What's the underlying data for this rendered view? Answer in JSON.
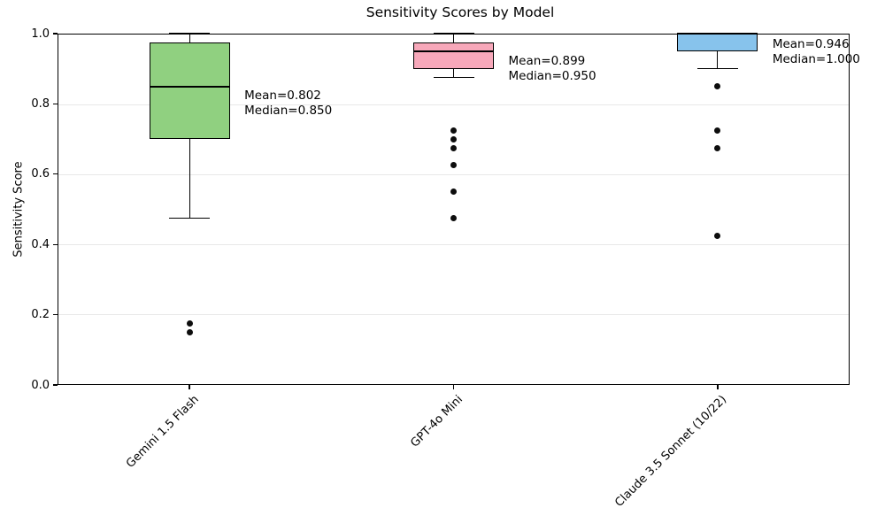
{
  "chart_data": {
    "type": "boxplot",
    "title": "Sensitivity Scores by Model",
    "ylabel": "Sensitivity Score",
    "ylim": [
      0.0,
      1.0
    ],
    "yticks": [
      "0.0",
      "0.2",
      "0.4",
      "0.6",
      "0.8",
      "1.0"
    ],
    "grid": "horizontal",
    "grid_color": "#e8e8e8",
    "categories": [
      "Gemini 1.5 Flash",
      "GPT-4o Mini",
      "Claude 3.5 Sonnet (10/22)"
    ],
    "series": [
      {
        "name": "Gemini 1.5 Flash",
        "box_color": "#90d080",
        "whisker_low": 0.475,
        "q1": 0.7,
        "median": 0.85,
        "q3": 0.975,
        "whisker_high": 1.0,
        "mean": 0.802,
        "outliers": [
          0.175,
          0.15
        ],
        "annotation_lines": [
          "Mean=0.802",
          "Median=0.850"
        ]
      },
      {
        "name": "GPT-4o Mini",
        "box_color": "#f7a8ba",
        "whisker_low": 0.875,
        "q1": 0.9,
        "median": 0.95,
        "q3": 0.975,
        "whisker_high": 1.0,
        "mean": 0.899,
        "outliers": [
          0.725,
          0.7,
          0.675,
          0.625,
          0.55,
          0.475
        ],
        "annotation_lines": [
          "Mean=0.899",
          "Median=0.950"
        ]
      },
      {
        "name": "Claude 3.5 Sonnet (10/22)",
        "box_color": "#87c3ec",
        "whisker_low": 0.9,
        "q1": 0.95,
        "median": 1.0,
        "q3": 1.0,
        "whisker_high": 1.0,
        "mean": 0.946,
        "outliers": [
          0.85,
          0.725,
          0.675,
          0.425
        ],
        "annotation_lines": [
          "Mean=0.946",
          "Median=1.000"
        ]
      }
    ]
  }
}
